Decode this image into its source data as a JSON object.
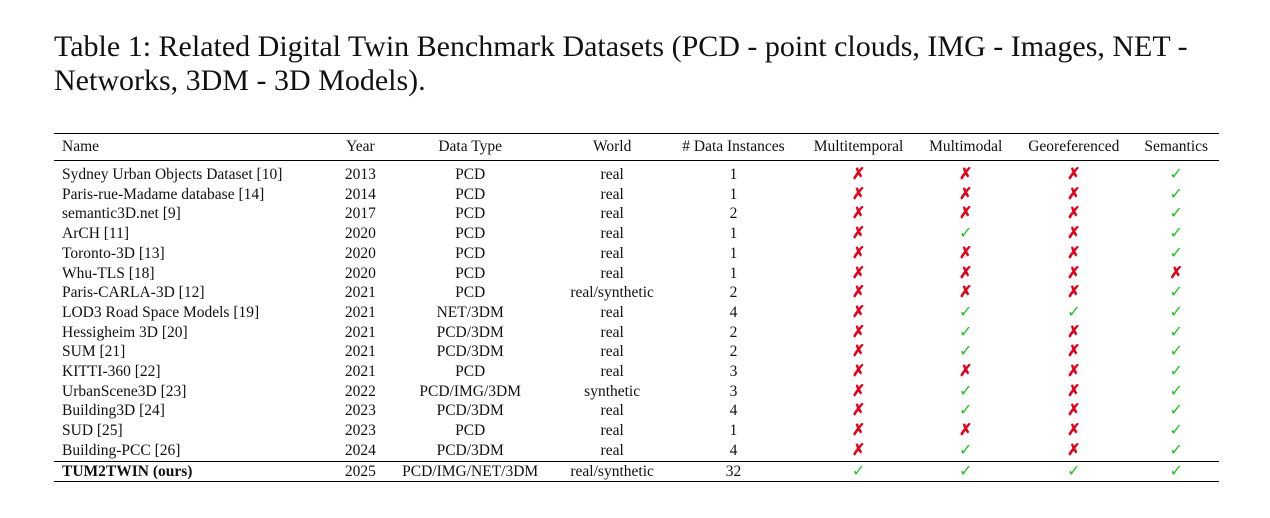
{
  "caption": "Table 1: Related Digital Twin Benchmark Datasets (PCD - point clouds, IMG - Images, NET - Networks, 3DM - 3D Models).",
  "symbols": {
    "yes": "✓",
    "no": "✗",
    "yes_color": "#22c322",
    "no_color": "#e2001a"
  },
  "headers": [
    "Name",
    "Year",
    "Data Type",
    "World",
    "# Data Instances",
    "Multitemporal",
    "Multimodal",
    "Georeferenced",
    "Semantics"
  ],
  "rows": [
    {
      "name": "Sydney Urban Objects Dataset [10]",
      "year": "2013",
      "data_type": "PCD",
      "world": "real",
      "instances": "1",
      "multitemporal": false,
      "multimodal": false,
      "georeferenced": false,
      "semantics": true
    },
    {
      "name": "Paris-rue-Madame database [14]",
      "year": "2014",
      "data_type": "PCD",
      "world": "real",
      "instances": "1",
      "multitemporal": false,
      "multimodal": false,
      "georeferenced": false,
      "semantics": true
    },
    {
      "name": "semantic3D.net [9]",
      "year": "2017",
      "data_type": "PCD",
      "world": "real",
      "instances": "2",
      "multitemporal": false,
      "multimodal": false,
      "georeferenced": false,
      "semantics": true
    },
    {
      "name": "ArCH [11]",
      "year": "2020",
      "data_type": "PCD",
      "world": "real",
      "instances": "1",
      "multitemporal": false,
      "multimodal": true,
      "georeferenced": false,
      "semantics": true
    },
    {
      "name": "Toronto-3D [13]",
      "year": "2020",
      "data_type": "PCD",
      "world": "real",
      "instances": "1",
      "multitemporal": false,
      "multimodal": false,
      "georeferenced": false,
      "semantics": true
    },
    {
      "name": "Whu-TLS [18]",
      "year": "2020",
      "data_type": "PCD",
      "world": "real",
      "instances": "1",
      "multitemporal": false,
      "multimodal": false,
      "georeferenced": false,
      "semantics": false
    },
    {
      "name": "Paris-CARLA-3D [12]",
      "year": "2021",
      "data_type": "PCD",
      "world": "real/synthetic",
      "instances": "2",
      "multitemporal": false,
      "multimodal": false,
      "georeferenced": false,
      "semantics": true
    },
    {
      "name": "LOD3 Road Space Models [19]",
      "year": "2021",
      "data_type": "NET/3DM",
      "world": "real",
      "instances": "4",
      "multitemporal": false,
      "multimodal": true,
      "georeferenced": true,
      "semantics": true
    },
    {
      "name": "Hessigheim 3D [20]",
      "year": "2021",
      "data_type": "PCD/3DM",
      "world": "real",
      "instances": "2",
      "multitemporal": false,
      "multimodal": true,
      "georeferenced": false,
      "semantics": true
    },
    {
      "name": "SUM [21]",
      "year": "2021",
      "data_type": "PCD/3DM",
      "world": "real",
      "instances": "2",
      "multitemporal": false,
      "multimodal": true,
      "georeferenced": false,
      "semantics": true
    },
    {
      "name": "KITTI-360 [22]",
      "year": "2021",
      "data_type": "PCD",
      "world": "real",
      "instances": "3",
      "multitemporal": false,
      "multimodal": false,
      "georeferenced": false,
      "semantics": true
    },
    {
      "name": "UrbanScene3D [23]",
      "year": "2022",
      "data_type": "PCD/IMG/3DM",
      "world": "synthetic",
      "instances": "3",
      "multitemporal": false,
      "multimodal": true,
      "georeferenced": false,
      "semantics": true
    },
    {
      "name": "Building3D [24]",
      "year": "2023",
      "data_type": "PCD/3DM",
      "world": "real",
      "instances": "4",
      "multitemporal": false,
      "multimodal": true,
      "georeferenced": false,
      "semantics": true
    },
    {
      "name": "SUD [25]",
      "year": "2023",
      "data_type": "PCD",
      "world": "real",
      "instances": "1",
      "multitemporal": false,
      "multimodal": false,
      "georeferenced": false,
      "semantics": true
    },
    {
      "name": "Building-PCC [26]",
      "year": "2024",
      "data_type": "PCD/3DM",
      "world": "real",
      "instances": "4",
      "multitemporal": false,
      "multimodal": true,
      "georeferenced": false,
      "semantics": true
    }
  ],
  "ours": {
    "name": "TUM2TWIN (ours)",
    "year": "2025",
    "data_type": "PCD/IMG/NET/3DM",
    "world": "real/synthetic",
    "instances": "32",
    "multitemporal": true,
    "multimodal": true,
    "georeferenced": true,
    "semantics": true
  }
}
